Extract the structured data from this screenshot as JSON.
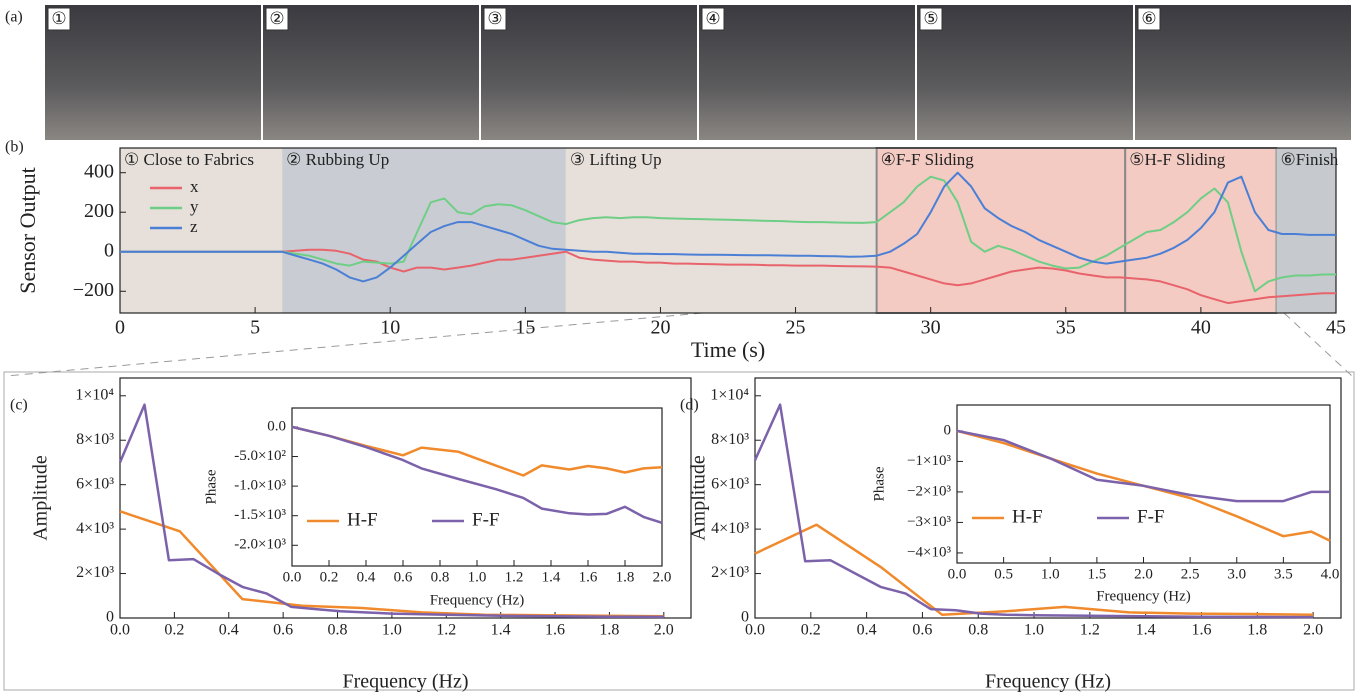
{
  "figure": {
    "panel_labels": [
      "(a)",
      "(b)",
      "(c)",
      "(d)"
    ]
  },
  "photos": {
    "labels": [
      "①",
      "②",
      "③",
      "④",
      "⑤",
      "⑥"
    ]
  },
  "chart_data": [
    {
      "type": "line",
      "xlabel": "Time (s)",
      "ylabel": "Sensor Output",
      "legend": "upper left",
      "xlim": [
        0,
        45
      ],
      "ylim": [
        -310,
        525
      ],
      "xticks": [
        0,
        5,
        10,
        15,
        20,
        25,
        30,
        35,
        40,
        45
      ],
      "yticks": [
        {
          "value": -200,
          "label": "−200"
        },
        0,
        200,
        400
      ],
      "regions": [
        {
          "label": "① Close to Fabrics",
          "start": 0,
          "end": 6,
          "color": "#e7e0da"
        },
        {
          "label": "② Rubbing Up",
          "start": 6,
          "end": 16.5,
          "color": "#c9cdd3"
        },
        {
          "label": "③  Lifting Up",
          "start": 16.5,
          "end": 28,
          "color": "#e7e0da"
        },
        {
          "label": "④F-F Sliding",
          "start": 28,
          "end": 37.2,
          "color": "#f3cbc2",
          "border": "#8a8a8a"
        },
        {
          "label": "⑤H-F Sliding",
          "start": 37.2,
          "end": 42.8,
          "color": "#f3cbc2",
          "border": "#8a8a8a"
        },
        {
          "label": "⑥Finish",
          "start": 42.8,
          "end": 45,
          "color": "#c6c9cd"
        }
      ],
      "x": [
        0,
        0.5,
        1,
        1.5,
        2,
        2.5,
        3,
        3.5,
        4,
        4.5,
        5,
        5.5,
        6,
        6.5,
        7,
        7.5,
        8,
        8.5,
        9,
        9.5,
        10,
        10.5,
        11,
        11.5,
        12,
        12.5,
        13,
        13.5,
        14,
        14.5,
        15,
        15.5,
        16,
        16.5,
        17,
        17.5,
        18,
        18.5,
        19,
        19.5,
        20,
        20.5,
        21,
        21.5,
        22,
        22.5,
        23,
        23.5,
        24,
        24.5,
        25,
        25.5,
        26,
        26.5,
        27,
        27.5,
        28,
        28.5,
        29,
        29.5,
        30,
        30.5,
        31,
        31.5,
        32,
        32.5,
        33,
        33.5,
        34,
        34.5,
        35,
        35.5,
        36,
        36.5,
        37,
        37.5,
        38,
        38.5,
        39,
        39.5,
        40,
        40.5,
        41,
        41.5,
        42,
        42.5,
        43,
        43.5,
        44,
        44.5,
        45
      ],
      "series": [
        {
          "name": "x",
          "color": "#e8636b",
          "values": [
            0,
            0,
            0,
            0,
            0,
            0,
            0,
            0,
            0,
            0,
            0,
            0,
            0,
            5,
            10,
            10,
            5,
            -10,
            -40,
            -50,
            -80,
            -100,
            -80,
            -80,
            -90,
            -80,
            -70,
            -55,
            -40,
            -40,
            -30,
            -20,
            -10,
            0,
            -30,
            -40,
            -45,
            -50,
            -50,
            -55,
            -55,
            -60,
            -60,
            -62,
            -63,
            -65,
            -65,
            -66,
            -68,
            -68,
            -70,
            -70,
            -70,
            -72,
            -73,
            -74,
            -75,
            -80,
            -100,
            -120,
            -140,
            -160,
            -170,
            -160,
            -140,
            -120,
            -100,
            -90,
            -80,
            -85,
            -95,
            -110,
            -120,
            -130,
            -130,
            -135,
            -140,
            -150,
            -170,
            -190,
            -220,
            -240,
            -260,
            -250,
            -240,
            -230,
            -225,
            -220,
            -215,
            -210,
            -210
          ]
        },
        {
          "name": "y",
          "color": "#6fce86",
          "values": [
            0,
            0,
            0,
            0,
            0,
            0,
            0,
            0,
            0,
            0,
            0,
            0,
            0,
            -10,
            -20,
            -40,
            -60,
            -70,
            -50,
            -55,
            -60,
            -50,
            100,
            250,
            270,
            200,
            190,
            230,
            240,
            235,
            210,
            180,
            150,
            140,
            160,
            170,
            175,
            170,
            175,
            175,
            170,
            168,
            166,
            165,
            163,
            162,
            160,
            158,
            156,
            155,
            152,
            150,
            150,
            148,
            147,
            146,
            150,
            200,
            250,
            330,
            380,
            360,
            250,
            50,
            0,
            30,
            10,
            -20,
            -50,
            -70,
            -85,
            -80,
            -50,
            -20,
            20,
            60,
            100,
            110,
            150,
            200,
            270,
            320,
            250,
            0,
            -200,
            -150,
            -130,
            -120,
            -120,
            -115,
            -115
          ]
        },
        {
          "name": "z",
          "color": "#4b7fd6",
          "values": [
            0,
            0,
            0,
            0,
            0,
            0,
            0,
            0,
            0,
            0,
            0,
            0,
            0,
            -20,
            -40,
            -60,
            -90,
            -130,
            -150,
            -130,
            -80,
            -20,
            40,
            100,
            130,
            150,
            150,
            130,
            110,
            90,
            60,
            30,
            15,
            10,
            5,
            0,
            0,
            -5,
            -10,
            -10,
            -12,
            -12,
            -14,
            -15,
            -15,
            -16,
            -17,
            -18,
            -18,
            -19,
            -20,
            -20,
            -22,
            -23,
            -25,
            -24,
            -20,
            0,
            40,
            90,
            200,
            330,
            400,
            330,
            220,
            170,
            130,
            100,
            60,
            30,
            0,
            -30,
            -50,
            -60,
            -50,
            -40,
            -30,
            -10,
            20,
            60,
            120,
            200,
            350,
            380,
            200,
            110,
            90,
            90,
            85,
            85,
            85
          ]
        }
      ]
    },
    {
      "type": "line",
      "xlabel": "Frequency (Hz)",
      "ylabel": "Amplitude",
      "xlim": [
        0,
        2.1
      ],
      "ylim": [
        0,
        10800
      ],
      "xticks": [
        {
          "value": 0,
          "label": "0.0"
        },
        0.2,
        0.4,
        0.6,
        0.8,
        {
          "value": 1,
          "label": "1.0"
        },
        1.2,
        1.4,
        1.6,
        1.8,
        {
          "value": 2,
          "label": "2.0"
        }
      ],
      "yticks": [
        0,
        {
          "value": 2000,
          "label": "2×10³"
        },
        {
          "value": 4000,
          "label": "4×10³"
        },
        {
          "value": 6000,
          "label": "6×10³"
        },
        {
          "value": 8000,
          "label": "8×10³"
        },
        {
          "value": 10000,
          "label": "1×10⁴"
        }
      ],
      "series": [
        {
          "color": "#f08a2c",
          "x": [
            0,
            0.22,
            0.45,
            0.67,
            0.89,
            1.11,
            1.34,
            1.56,
            1.78,
            2.0
          ],
          "values": [
            4800,
            3900,
            850,
            550,
            450,
            250,
            150,
            120,
            100,
            80
          ]
        },
        {
          "color": "#7c62aa",
          "x": [
            0,
            0.09,
            0.18,
            0.27,
            0.36,
            0.45,
            0.54,
            0.63,
            0.72,
            0.81,
            0.9,
            1.0,
            1.2,
            1.4,
            1.6,
            1.8,
            2.0
          ],
          "values": [
            7000,
            9600,
            2600,
            2650,
            2000,
            1400,
            1100,
            500,
            400,
            300,
            250,
            200,
            150,
            100,
            80,
            60,
            50
          ]
        }
      ]
    },
    {
      "type": "line",
      "inset": true,
      "xlabel": "Frequency (Hz)",
      "ylabel": "Phase",
      "legend": "lower left",
      "xlim": [
        0,
        2
      ],
      "ylim": [
        -2350,
        320
      ],
      "xticks": [
        {
          "value": 0,
          "label": "0.0"
        },
        0.2,
        0.4,
        0.6,
        0.8,
        {
          "value": 1,
          "label": "1.0"
        },
        1.2,
        1.4,
        1.6,
        1.8,
        {
          "value": 2,
          "label": "2.0"
        }
      ],
      "yticks": [
        {
          "value": 0,
          "label": "0.0"
        },
        {
          "value": -500,
          "label": "-5.0×10²"
        },
        {
          "value": -1000,
          "label": "-1.0×10³"
        },
        {
          "value": -1500,
          "label": "-1.5×10³"
        },
        {
          "value": -2000,
          "label": "-2.0×10³"
        }
      ],
      "x": [
        0,
        0.2,
        0.4,
        0.6,
        0.7,
        0.9,
        1.1,
        1.25,
        1.35,
        1.5,
        1.6,
        1.7,
        1.8,
        1.9,
        2.0
      ],
      "series": [
        {
          "name": "H-F",
          "color": "#f08a2c",
          "values": [
            0,
            -150,
            -320,
            -480,
            -350,
            -420,
            -650,
            -820,
            -650,
            -720,
            -660,
            -700,
            -770,
            -700,
            -680
          ]
        },
        {
          "name": "F-F",
          "color": "#7c62aa",
          "values": [
            0,
            -150,
            -340,
            -560,
            -700,
            -880,
            -1050,
            -1200,
            -1380,
            -1460,
            -1480,
            -1470,
            -1350,
            -1520,
            -1620
          ]
        }
      ]
    },
    {
      "type": "line",
      "xlabel": "Frequency (Hz)",
      "ylabel": "Amplitude",
      "xlim": [
        0,
        2.1
      ],
      "ylim": [
        0,
        10800
      ],
      "xticks": [
        {
          "value": 0,
          "label": "0.0"
        },
        0.2,
        0.4,
        0.6,
        0.8,
        {
          "value": 1,
          "label": "1.0"
        },
        1.2,
        1.4,
        1.6,
        1.8,
        {
          "value": 2,
          "label": "2.0"
        }
      ],
      "yticks": [
        0,
        {
          "value": 2000,
          "label": "2×10³"
        },
        {
          "value": 4000,
          "label": "4×10³"
        },
        {
          "value": 6000,
          "label": "6×10³"
        },
        {
          "value": 8000,
          "label": "8×10³"
        },
        {
          "value": 10000,
          "label": "1×10⁴"
        }
      ],
      "series": [
        {
          "color": "#f08a2c",
          "x": [
            0,
            0.22,
            0.45,
            0.67,
            0.9,
            1.11,
            1.34,
            1.56,
            1.78,
            2.0
          ],
          "values": [
            2900,
            4200,
            2300,
            150,
            300,
            500,
            250,
            200,
            180,
            150
          ]
        },
        {
          "color": "#7c62aa",
          "x": [
            0,
            0.09,
            0.18,
            0.27,
            0.36,
            0.45,
            0.54,
            0.63,
            0.72,
            0.81,
            0.9,
            1.0,
            1.2,
            1.4,
            1.6,
            1.8,
            2.0
          ],
          "values": [
            7100,
            9600,
            2550,
            2600,
            2000,
            1400,
            1100,
            400,
            350,
            200,
            150,
            120,
            100,
            80,
            60,
            50,
            40
          ]
        }
      ]
    },
    {
      "type": "line",
      "inset": true,
      "xlabel": "Frequency (Hz)",
      "ylabel": "Phase",
      "legend": "lower left",
      "xlim": [
        0,
        4
      ],
      "ylim": [
        -4330,
        850
      ],
      "xticks": [
        {
          "value": 0,
          "label": "0.0"
        },
        0.5,
        {
          "value": 1,
          "label": "1.0"
        },
        1.5,
        {
          "value": 2,
          "label": "2.0"
        },
        2.5,
        {
          "value": 3,
          "label": "3.0"
        },
        3.5,
        {
          "value": 4,
          "label": "4.0"
        }
      ],
      "yticks": [
        0,
        {
          "value": -1000,
          "label": "−1×10³"
        },
        {
          "value": -2000,
          "label": "−2×10³"
        },
        {
          "value": -3000,
          "label": "−3×10³"
        },
        {
          "value": -4000,
          "label": "−4×10³"
        }
      ],
      "x": [
        0,
        0.5,
        1,
        1.5,
        2,
        2.5,
        3,
        3.5,
        3.8,
        4
      ],
      "series": [
        {
          "name": "H-F",
          "color": "#f08a2c",
          "values": [
            0,
            -400,
            -900,
            -1400,
            -1800,
            -2200,
            -2800,
            -3450,
            -3300,
            -3600
          ]
        },
        {
          "name": "F-F",
          "color": "#7c62aa",
          "values": [
            0,
            -300,
            -900,
            -1600,
            -1800,
            -2100,
            -2300,
            -2300,
            -2000,
            -2000
          ]
        }
      ]
    }
  ]
}
